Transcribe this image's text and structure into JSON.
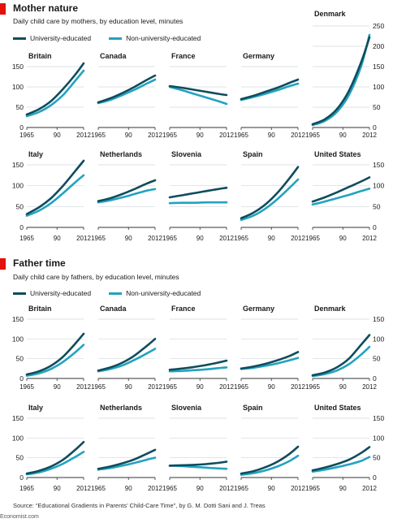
{
  "colors": {
    "university": "#0f4c5c",
    "non_university": "#22a3bf",
    "accent": "#e3120b",
    "grid": "#d0d7db",
    "axis": "#333333"
  },
  "legend": {
    "university": "University-educated",
    "non_university": "Non-university-educated"
  },
  "sections": [
    {
      "title": "Mother nature",
      "subtitle": "Daily child care by mothers, by education level, minutes"
    },
    {
      "title": "Father time",
      "subtitle": "Daily child care by fathers, by education level, minutes"
    }
  ],
  "source": "Source: “Educational Gradients in Parents’ Child-Care Time”, by G. M. Dotti Sani and J. Treas",
  "credit": "Economist.com",
  "chart_data": [
    {
      "type": "line",
      "panel_group": "Mother nature",
      "x_ticks": [
        "1965",
        "90",
        "2012"
      ],
      "xlim": [
        1965,
        2012
      ],
      "ylim": [
        0,
        250
      ],
      "y_ticks_top": [
        0,
        50,
        100,
        150,
        200,
        250
      ],
      "y_ticks_bottom": [
        0,
        50,
        100,
        150
      ],
      "grid": true,
      "panels": [
        {
          "name": "Britain",
          "x": [
            1965,
            1975,
            1985,
            1995,
            2005,
            2012
          ],
          "university": [
            32,
            45,
            65,
            95,
            130,
            158
          ],
          "non_university": [
            28,
            38,
            55,
            80,
            115,
            140
          ]
        },
        {
          "name": "Canada",
          "x": [
            1965,
            1975,
            1985,
            1995,
            2005,
            2012
          ],
          "university": [
            62,
            72,
            85,
            100,
            117,
            128
          ],
          "non_university": [
            60,
            68,
            80,
            93,
            108,
            118
          ]
        },
        {
          "name": "France",
          "x": [
            1965,
            1975,
            1985,
            1995,
            2005,
            2012
          ],
          "university": [
            102,
            98,
            93,
            88,
            83,
            80
          ],
          "non_university": [
            100,
            92,
            83,
            74,
            65,
            58
          ]
        },
        {
          "name": "Germany",
          "x": [
            1965,
            1975,
            1985,
            1995,
            2005,
            2012
          ],
          "university": [
            70,
            78,
            88,
            98,
            110,
            118
          ],
          "non_university": [
            68,
            75,
            83,
            92,
            102,
            108
          ]
        },
        {
          "name": "Denmark",
          "x": [
            1965,
            1975,
            1985,
            1995,
            2005,
            2012
          ],
          "university": [
            8,
            20,
            45,
            90,
            160,
            222
          ],
          "non_university": [
            6,
            16,
            38,
            80,
            150,
            228
          ]
        },
        {
          "name": "Italy",
          "x": [
            1965,
            1975,
            1985,
            1995,
            2005,
            2012
          ],
          "university": [
            32,
            48,
            70,
            100,
            135,
            160
          ],
          "non_university": [
            28,
            40,
            58,
            82,
            108,
            125
          ]
        },
        {
          "name": "Netherlands",
          "x": [
            1965,
            1975,
            1985,
            1995,
            2005,
            2012
          ],
          "university": [
            63,
            70,
            80,
            92,
            105,
            113
          ],
          "non_university": [
            60,
            65,
            72,
            80,
            88,
            92
          ]
        },
        {
          "name": "Slovenia",
          "x": [
            1965,
            1975,
            1985,
            1995,
            2005,
            2012
          ],
          "university": [
            72,
            77,
            82,
            87,
            92,
            95
          ],
          "non_university": [
            58,
            59,
            59,
            60,
            60,
            60
          ]
        },
        {
          "name": "Spain",
          "x": [
            1965,
            1975,
            1985,
            1995,
            2005,
            2012
          ],
          "university": [
            22,
            35,
            55,
            83,
            118,
            145
          ],
          "non_university": [
            18,
            28,
            45,
            68,
            95,
            115
          ]
        },
        {
          "name": "United States",
          "x": [
            1965,
            1975,
            1985,
            1995,
            2005,
            2012
          ],
          "university": [
            62,
            72,
            84,
            97,
            110,
            120
          ],
          "non_university": [
            55,
            62,
            70,
            78,
            87,
            93
          ]
        }
      ]
    },
    {
      "type": "line",
      "panel_group": "Father time",
      "x_ticks": [
        "1965",
        "90",
        "2012"
      ],
      "xlim": [
        1965,
        2012
      ],
      "ylim": [
        0,
        150
      ],
      "y_ticks_top": [
        0,
        50,
        100,
        150
      ],
      "y_ticks_bottom": [
        0,
        50,
        100,
        150
      ],
      "grid": true,
      "panels": [
        {
          "name": "Britain",
          "x": [
            1965,
            1975,
            1985,
            1995,
            2005,
            2012
          ],
          "university": [
            10,
            18,
            32,
            55,
            88,
            113
          ],
          "non_university": [
            7,
            13,
            24,
            42,
            66,
            85
          ]
        },
        {
          "name": "Canada",
          "x": [
            1965,
            1975,
            1985,
            1995,
            2005,
            2012
          ],
          "university": [
            20,
            28,
            40,
            58,
            82,
            100
          ],
          "non_university": [
            18,
            24,
            33,
            47,
            63,
            75
          ]
        },
        {
          "name": "France",
          "x": [
            1965,
            1975,
            1985,
            1995,
            2005,
            2012
          ],
          "university": [
            22,
            25,
            29,
            34,
            40,
            45
          ],
          "non_university": [
            18,
            19,
            21,
            23,
            26,
            28
          ]
        },
        {
          "name": "Germany",
          "x": [
            1965,
            1975,
            1985,
            1995,
            2005,
            2012
          ],
          "university": [
            25,
            30,
            37,
            46,
            57,
            67
          ],
          "non_university": [
            24,
            27,
            32,
            38,
            46,
            52
          ]
        },
        {
          "name": "Denmark",
          "x": [
            1965,
            1975,
            1985,
            1995,
            2005,
            2012
          ],
          "university": [
            8,
            15,
            28,
            50,
            85,
            110
          ],
          "non_university": [
            6,
            11,
            20,
            36,
            60,
            80
          ]
        },
        {
          "name": "Italy",
          "x": [
            1965,
            1975,
            1985,
            1995,
            2005,
            2012
          ],
          "university": [
            10,
            17,
            28,
            45,
            70,
            90
          ],
          "non_university": [
            8,
            13,
            22,
            35,
            52,
            65
          ]
        },
        {
          "name": "Netherlands",
          "x": [
            1965,
            1975,
            1985,
            1995,
            2005,
            2012
          ],
          "university": [
            22,
            28,
            36,
            46,
            60,
            70
          ],
          "non_university": [
            20,
            24,
            30,
            37,
            45,
            50
          ]
        },
        {
          "name": "Slovenia",
          "x": [
            1965,
            1975,
            1985,
            1995,
            2005,
            2012
          ],
          "university": [
            30,
            31,
            32,
            34,
            37,
            40
          ],
          "non_university": [
            30,
            29,
            27,
            25,
            23,
            22
          ]
        },
        {
          "name": "Spain",
          "x": [
            1965,
            1975,
            1985,
            1995,
            2005,
            2012
          ],
          "university": [
            10,
            16,
            26,
            40,
            60,
            78
          ],
          "non_university": [
            7,
            11,
            18,
            28,
            42,
            55
          ]
        },
        {
          "name": "United States",
          "x": [
            1965,
            1975,
            1985,
            1995,
            2005,
            2012
          ],
          "university": [
            18,
            25,
            34,
            45,
            62,
            77
          ],
          "non_university": [
            15,
            20,
            26,
            33,
            42,
            52
          ]
        }
      ]
    }
  ]
}
